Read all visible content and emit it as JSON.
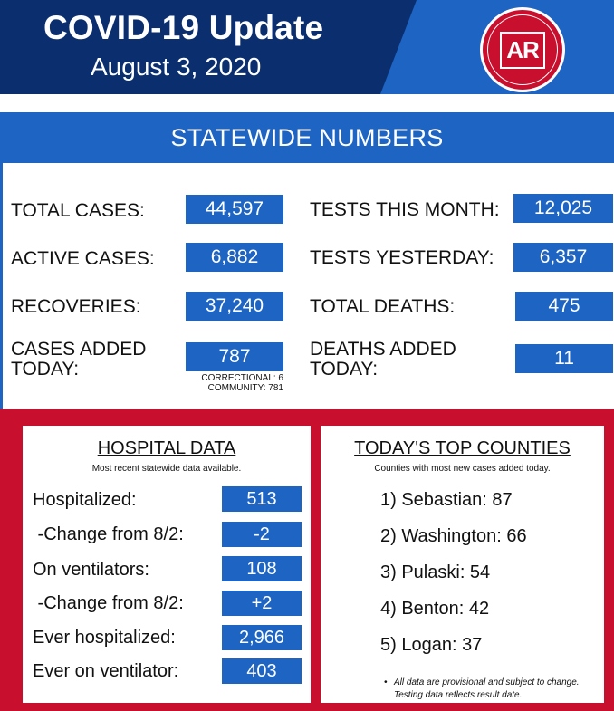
{
  "header": {
    "title": "COVID-19 Update",
    "date": "August 3, 2020",
    "logo_text": "AR",
    "logo_ring_text": "ARKANSAS DEPARTMENT OF HEALTH"
  },
  "statewide": {
    "title": "STATEWIDE NUMBERS",
    "left": [
      {
        "label": "TOTAL CASES:",
        "value": "44,597"
      },
      {
        "label": "ACTIVE CASES:",
        "value": "6,882"
      },
      {
        "label": "RECOVERIES:",
        "value": "37,240"
      },
      {
        "label": "CASES ADDED TODAY:",
        "value": "787"
      }
    ],
    "cases_added_note": [
      "CORRECTIONAL: 6",
      "COMMUNITY: 781"
    ],
    "right": [
      {
        "label": "TESTS THIS MONTH:",
        "value": "12,025"
      },
      {
        "label": "TESTS YESTERDAY:",
        "value": "6,357"
      },
      {
        "label": "TOTAL DEATHS:",
        "value": "475"
      },
      {
        "label": "DEATHS ADDED TODAY:",
        "value": "11"
      }
    ]
  },
  "hospital": {
    "title": "HOSPITAL DATA",
    "subtitle": "Most recent statewide data available.",
    "rows": [
      {
        "label": "Hospitalized:",
        "value": "513"
      },
      {
        "label": " -Change from 8/2:",
        "value": "-2"
      },
      {
        "label": "On ventilators:",
        "value": "108"
      },
      {
        "label": " -Change from 8/2:",
        "value": "+2"
      },
      {
        "label": "Ever hospitalized:",
        "value": "2,966"
      },
      {
        "label": "Ever on ventilator:",
        "value": "403"
      }
    ]
  },
  "counties": {
    "title": "TODAY'S TOP COUNTIES",
    "subtitle": "Counties with most new cases added today.",
    "items": [
      "1) Sebastian: 87",
      "2) Washington: 66",
      "3) Pulaski: 54",
      "4) Benton: 42",
      "5) Logan: 37"
    ],
    "footnote_1": "All data are provisional and subject to change.",
    "footnote_2": "Testing data reflects result date."
  },
  "colors": {
    "navy": "#0b2f6e",
    "blue": "#1d64c3",
    "red": "#c8102e"
  }
}
